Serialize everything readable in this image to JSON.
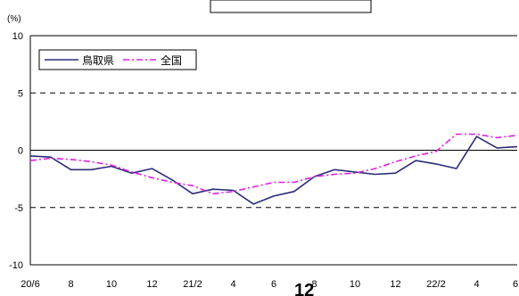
{
  "page_number": "12",
  "chart_data": {
    "type": "line",
    "title": "",
    "unit_label": "(%)",
    "ylim": [
      -10,
      10
    ],
    "y_ticks": [
      10,
      5,
      0,
      -5,
      -10
    ],
    "x_tick_labels": [
      "20/6",
      "8",
      "10",
      "12",
      "21/2",
      "4",
      "6",
      "8",
      "10",
      "12",
      "22/2",
      "4",
      "6"
    ],
    "categories": [
      "20/6",
      "20/7",
      "20/8",
      "20/9",
      "20/10",
      "20/11",
      "20/12",
      "21/1",
      "21/2",
      "21/3",
      "21/4",
      "21/5",
      "21/6",
      "21/7",
      "21/8",
      "21/9",
      "21/10",
      "21/11",
      "21/12",
      "22/1",
      "22/2",
      "22/3",
      "22/4",
      "22/5",
      "22/6"
    ],
    "grid": {
      "dashed_lines_at": [
        5,
        -5
      ],
      "zero_line": true
    },
    "legend": {
      "position": "top-left"
    },
    "series": [
      {
        "name": "鳥取県",
        "color": "#2b2b7a",
        "style": "solid",
        "values": [
          -0.5,
          -0.6,
          -1.7,
          -1.7,
          -1.4,
          -2.0,
          -1.6,
          -2.6,
          -3.8,
          -3.4,
          -3.5,
          -4.7,
          -4.0,
          -3.6,
          -2.3,
          -1.7,
          -1.9,
          -2.1,
          -2.0,
          -0.9,
          -1.2,
          -1.6,
          1.2,
          0.2,
          0.3
        ]
      },
      {
        "name": "全国",
        "color": "#e020e0",
        "style": "dashdot",
        "values": [
          -0.9,
          -0.7,
          -0.8,
          -1.0,
          -1.3,
          -1.9,
          -2.4,
          -2.8,
          -3.1,
          -3.8,
          -3.6,
          -3.2,
          -2.8,
          -2.8,
          -2.3,
          -2.1,
          -2.0,
          -1.6,
          -1.0,
          -0.5,
          -0.1,
          1.4,
          1.4,
          1.1,
          1.3
        ]
      }
    ]
  }
}
